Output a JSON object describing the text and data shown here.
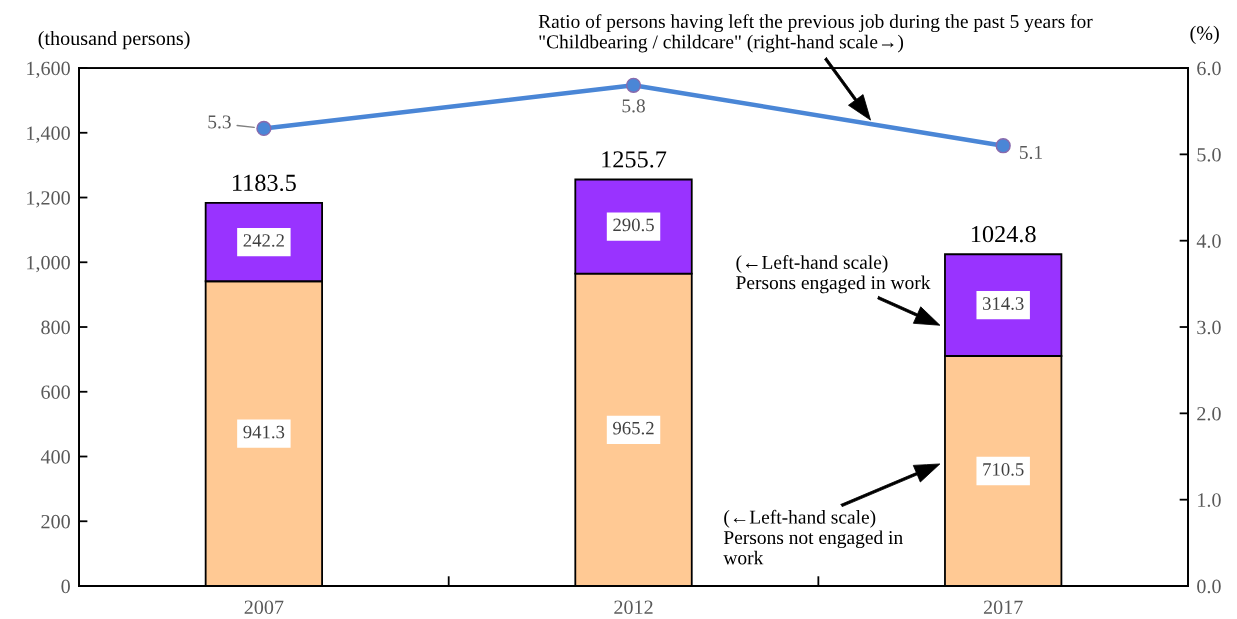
{
  "chart_data": {
    "type": "bar",
    "stacked": true,
    "categories": [
      "2007",
      "2012",
      "2017"
    ],
    "series": [
      {
        "name": "(←Left-hand scale)\nPersons not engaged in\nwork",
        "color": "#ffc994",
        "values": [
          941.3,
          965.2,
          710.5
        ]
      },
      {
        "name": "(←Left-hand scale)\nPersons engaged in work",
        "color": "#9933ff",
        "values": [
          242.2,
          290.5,
          314.3
        ]
      },
      {
        "name": "Ratio of persons having left the previous job during the past 5 years for\n\"Childbearing / childcare\" (right-hand scale→)",
        "type": "line",
        "axis": "y2",
        "color": "#4a86d6",
        "values": [
          5.3,
          5.8,
          5.1
        ]
      }
    ],
    "totals": [
      "1183.5",
      "1255.7",
      "1024.8"
    ],
    "data_labels": true,
    "marker": "circle",
    "line_style": "solid",
    "ylabel": "(thousand persons)",
    "y2label": "(%)",
    "ylim": [
      0,
      1600
    ],
    "yticks": [
      0,
      200,
      400,
      600,
      800,
      {
        "value": 1000,
        "label": "1,000"
      },
      {
        "value": 1200,
        "label": "1,200"
      },
      {
        "value": 1400,
        "label": "1,400"
      },
      {
        "value": 1600,
        "label": "1,600"
      }
    ],
    "y2lim": [
      0,
      6
    ],
    "y2ticks": [
      {
        "value": 0,
        "label": "0.0"
      },
      {
        "value": 1,
        "label": "1.0"
      },
      {
        "value": 2,
        "label": "2.0"
      },
      {
        "value": 3,
        "label": "3.0"
      },
      {
        "value": 4,
        "label": "4.0"
      },
      {
        "value": 5,
        "label": "5.0"
      },
      {
        "value": 6,
        "label": "6.0"
      }
    ]
  }
}
